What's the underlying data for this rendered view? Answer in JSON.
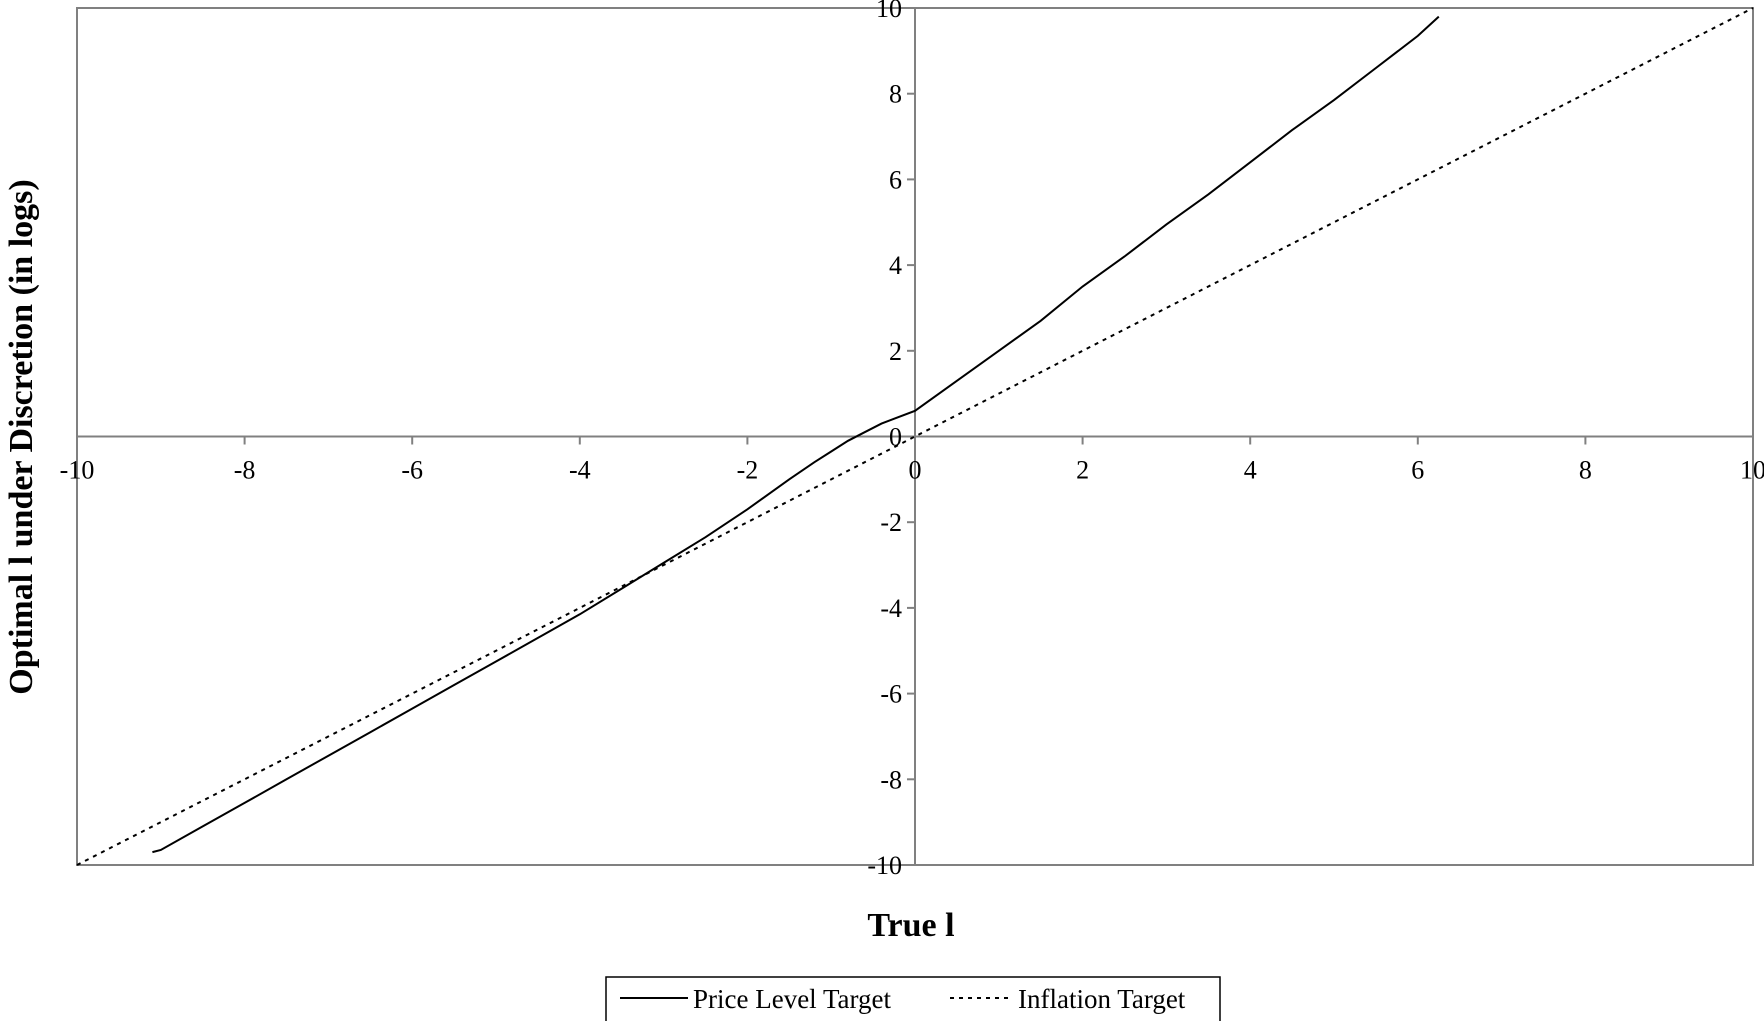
{
  "chart_data": {
    "type": "line",
    "title": "",
    "xlabel": "True l",
    "ylabel": "Optimal l  under Discretion (in logs)",
    "xlim": [
      -10,
      10
    ],
    "ylim": [
      -10,
      10
    ],
    "xticks": [
      -10,
      -8,
      -6,
      -4,
      -2,
      0,
      2,
      4,
      6,
      8,
      10
    ],
    "yticks": [
      -10,
      -8,
      -6,
      -4,
      -2,
      0,
      2,
      4,
      6,
      8,
      10
    ],
    "grid": false,
    "legend_position": "bottom-center",
    "series": [
      {
        "name": "Price Level Target",
        "style": "solid",
        "color": "#000000",
        "x": [
          -9.1,
          -9.0,
          -8.5,
          -8.0,
          -7.5,
          -7.0,
          -6.5,
          -6.0,
          -5.5,
          -5.0,
          -4.5,
          -4.0,
          -3.5,
          -3.0,
          -2.5,
          -2.0,
          -1.5,
          -1.2,
          -1.0,
          -0.8,
          -0.6,
          -0.4,
          -0.2,
          0.0,
          0.5,
          1.0,
          1.5,
          2.0,
          2.5,
          3.0,
          3.5,
          4.0,
          4.5,
          5.0,
          5.5,
          6.0,
          6.25
        ],
        "y": [
          -9.7,
          -9.65,
          -9.1,
          -8.55,
          -8.0,
          -7.45,
          -6.9,
          -6.35,
          -5.8,
          -5.25,
          -4.7,
          -4.15,
          -3.55,
          -2.95,
          -2.35,
          -1.7,
          -1.0,
          -0.6,
          -0.35,
          -0.1,
          0.1,
          0.3,
          0.45,
          0.6,
          1.3,
          2.0,
          2.7,
          3.5,
          4.2,
          4.95,
          5.65,
          6.4,
          7.15,
          7.85,
          8.6,
          9.35,
          9.8
        ]
      },
      {
        "name": "Inflation Target",
        "style": "dotted",
        "color": "#000000",
        "x": [
          -10,
          10
        ],
        "y": [
          -10,
          10
        ]
      }
    ]
  }
}
